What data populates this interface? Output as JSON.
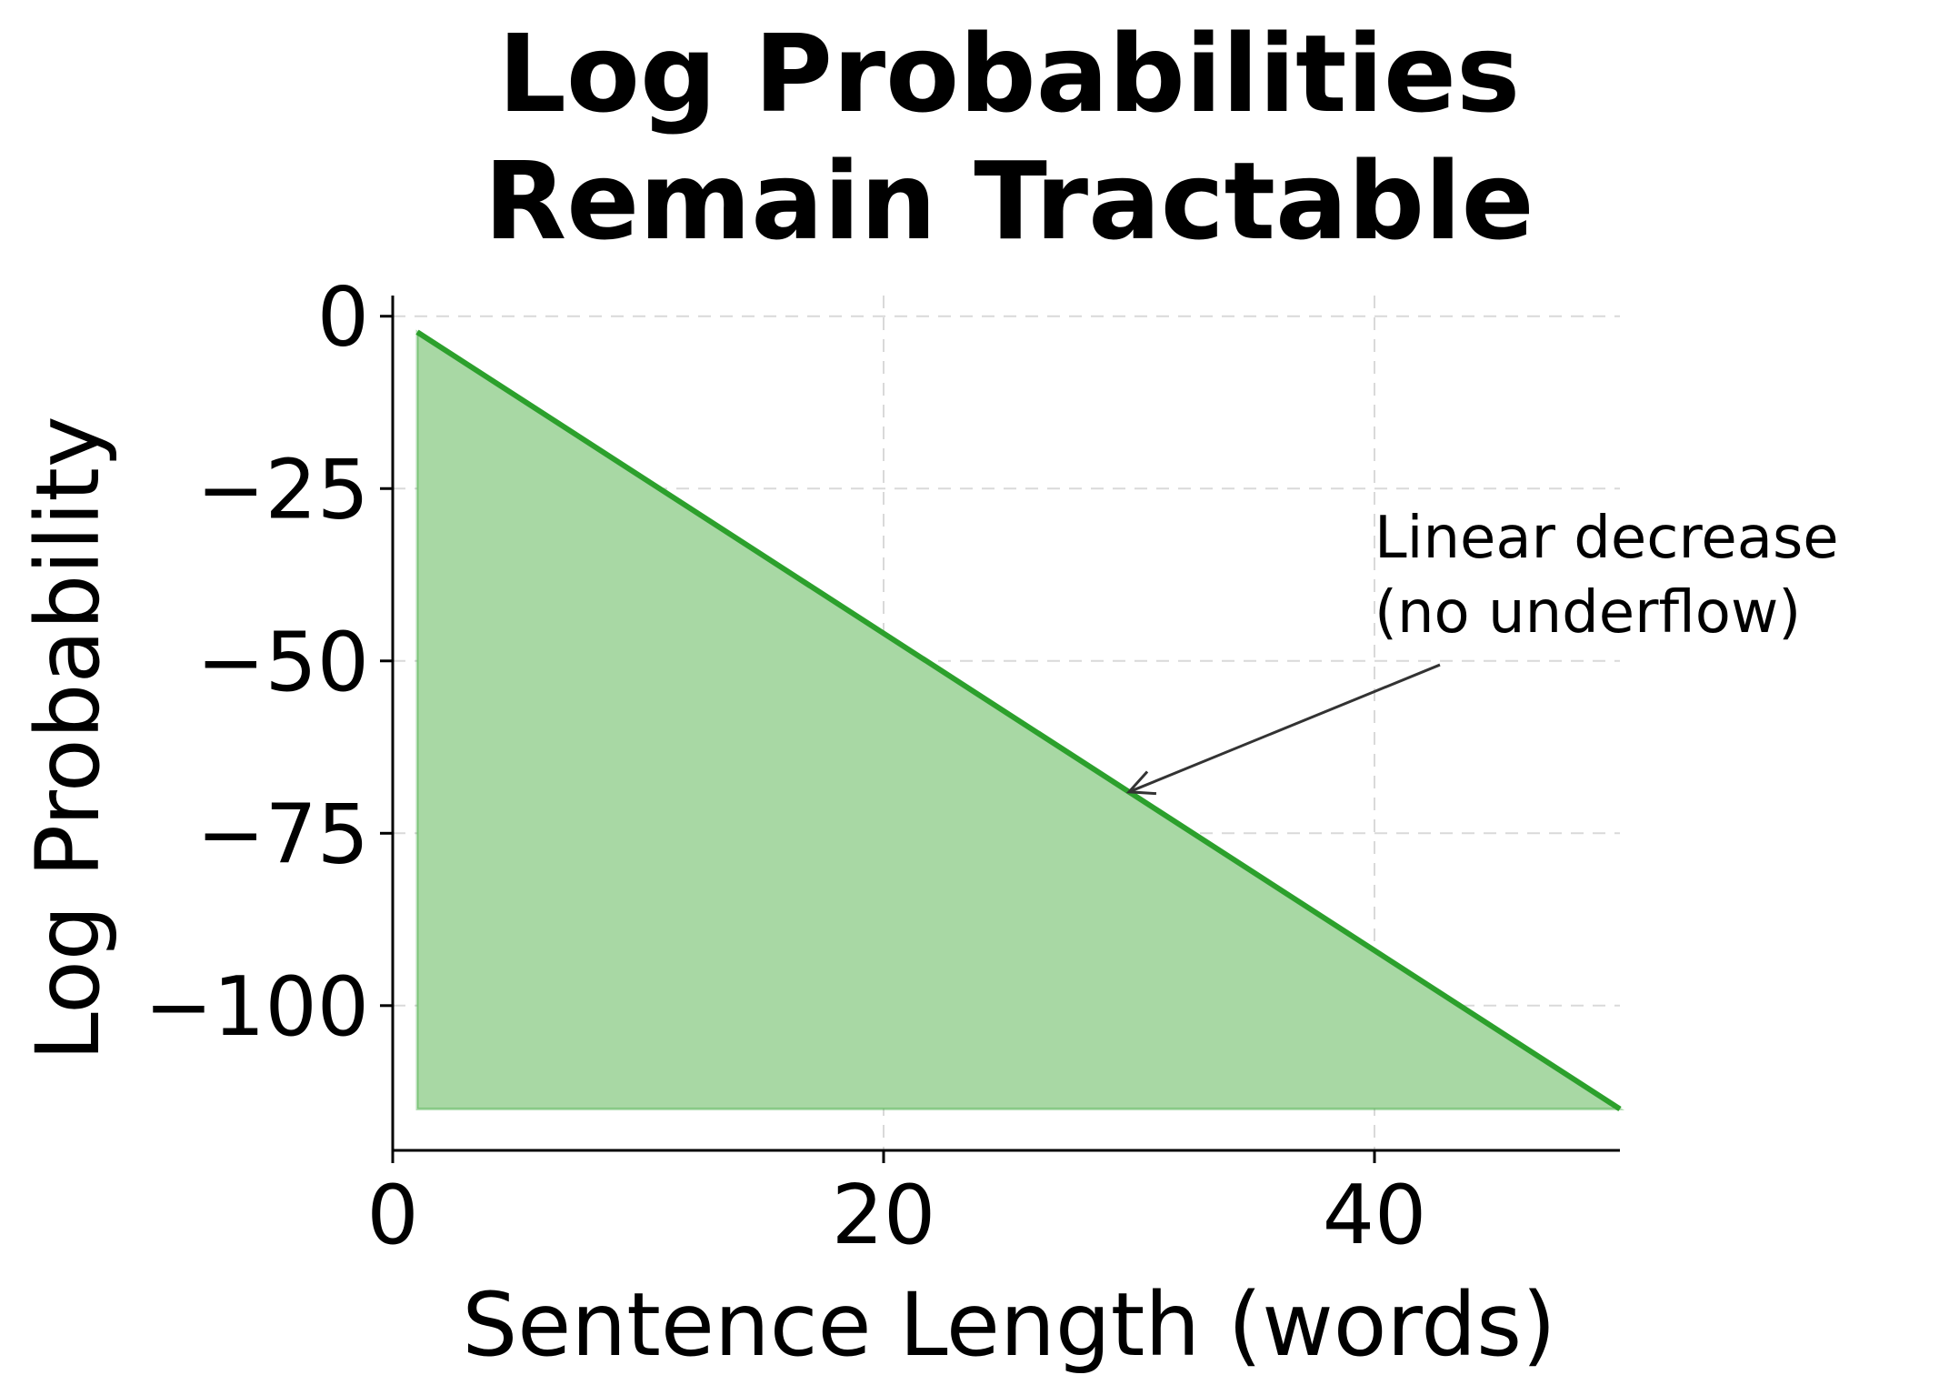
{
  "chart_data": {
    "type": "area",
    "title": [
      "Log Probabilities",
      "Remain Tractable"
    ],
    "xlabel": "Sentence Length (words)",
    "ylabel": "Log Probability",
    "xlim": [
      0,
      50
    ],
    "ylim": [
      -121,
      3
    ],
    "xticks": [
      0,
      20,
      40
    ],
    "xtick_labels": [
      "0",
      "20",
      "40"
    ],
    "yticks": [
      0,
      -25,
      -50,
      -75,
      -100
    ],
    "ytick_labels": [
      "0",
      "−25",
      "−50",
      "−75",
      "−100"
    ],
    "grid": true,
    "series": [
      {
        "x": [
          1,
          50
        ],
        "y": [
          -2.3,
          -115
        ],
        "fill_to": -115,
        "line_color": "#2ca02c",
        "fill_color": "#a8d8a4"
      }
    ],
    "annotation": {
      "lines": [
        "Linear decrease",
        "(no underflow)"
      ],
      "text_at": [
        40,
        -35
      ],
      "arrow_to": [
        30,
        -69
      ]
    }
  }
}
